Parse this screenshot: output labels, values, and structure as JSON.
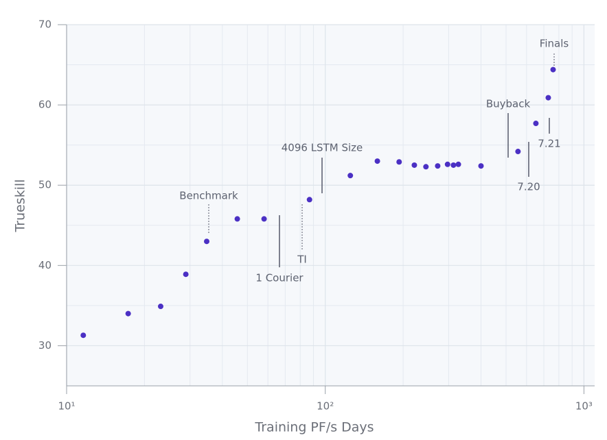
{
  "chart_data": {
    "type": "scatter",
    "x_label": "Training PF/s Days",
    "y_label": "Trueskill",
    "log_x": true,
    "grid": true,
    "color": "#4b30c4",
    "xlim": [
      10,
      1100
    ],
    "ylim": [
      25,
      70
    ],
    "xticks": [
      {
        "value": 10,
        "label": "10¹"
      },
      {
        "value": 100,
        "label": "10²"
      },
      {
        "value": 1000,
        "label": "10³"
      }
    ],
    "x_minor_ticks": [
      20,
      30,
      40,
      50,
      60,
      70,
      80,
      90,
      200,
      300,
      400,
      500,
      600,
      700,
      800,
      900
    ],
    "yticks": [
      30,
      40,
      50,
      60,
      70
    ],
    "y_minor_ticks": [
      35,
      45,
      55,
      65
    ],
    "x": [
      11.6,
      17.3,
      23.1,
      28.9,
      34.8,
      45.7,
      58.0,
      86.9,
      125,
      159,
      193,
      221,
      245,
      272,
      297,
      313,
      327,
      400,
      556,
      652,
      728,
      760
    ],
    "values": [
      31.3,
      34.0,
      34.9,
      38.9,
      43.0,
      45.8,
      45.8,
      48.2,
      51.2,
      53.0,
      52.9,
      52.5,
      52.3,
      52.4,
      52.6,
      52.5,
      52.6,
      52.4,
      54.2,
      57.7,
      60.9,
      64.4
    ],
    "annotations": [
      "Benchmark",
      "1 Courier",
      "TI",
      "4096 LSTM Size",
      "Buyback",
      "7.20",
      "7.21",
      "Finals"
    ]
  }
}
